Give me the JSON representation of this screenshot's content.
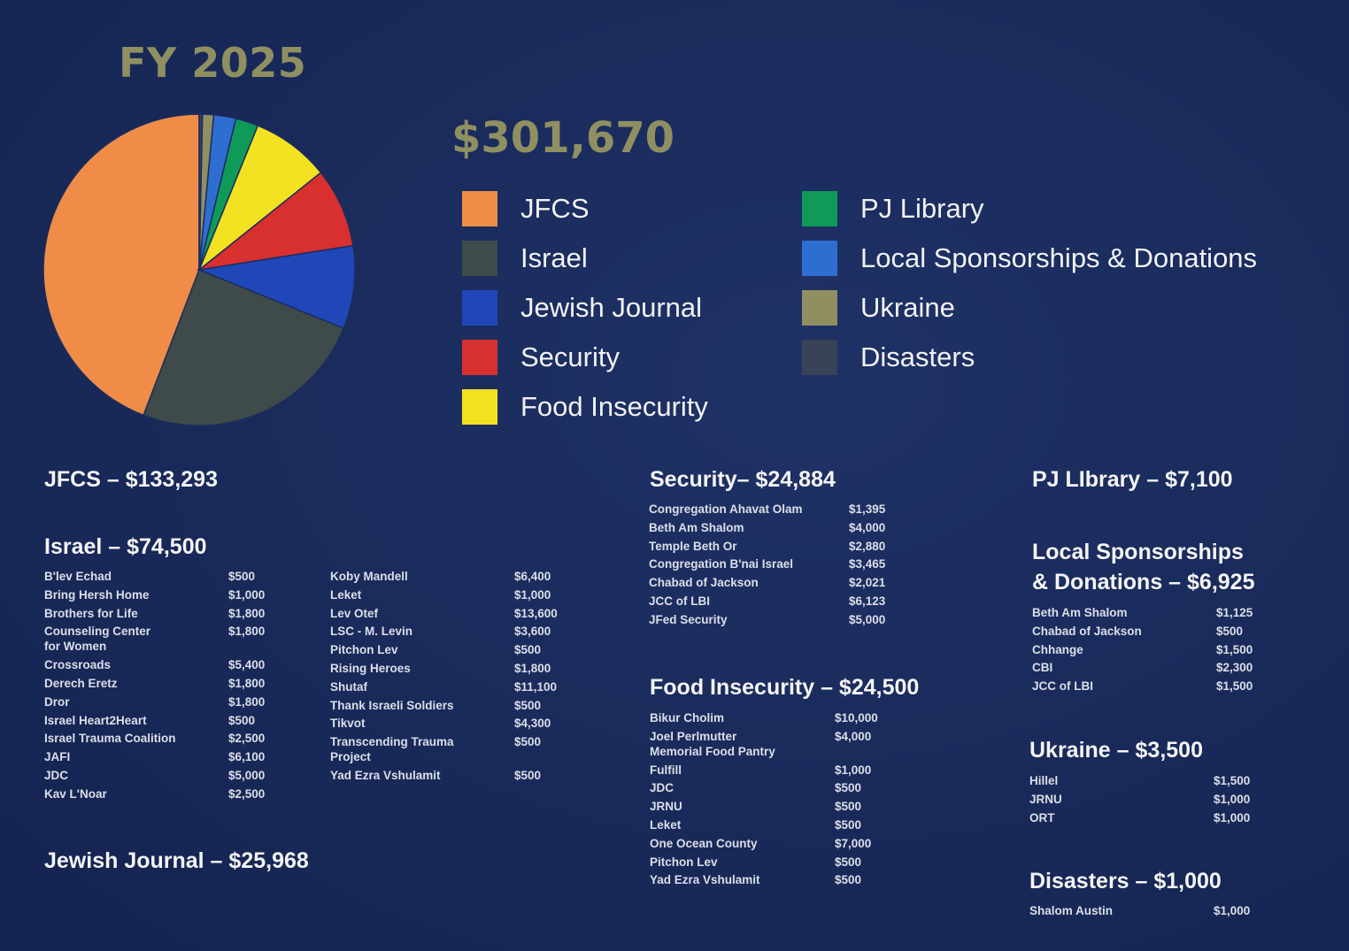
{
  "header": {
    "fy": "FY 2025",
    "total": "$301,670"
  },
  "chart_data": {
    "type": "pie",
    "title": "FY 2025",
    "total": "$301,670",
    "series": [
      {
        "name": "JFCS",
        "value": 133293,
        "color": "#ef8d48"
      },
      {
        "name": "Israel",
        "value": 74500,
        "color": "#3e4b4a"
      },
      {
        "name": "Jewish Journal",
        "value": 25968,
        "color": "#1f47b8"
      },
      {
        "name": "Security",
        "value": 24884,
        "color": "#d7302f"
      },
      {
        "name": "Food Insecurity",
        "value": 24500,
        "color": "#f2e221"
      },
      {
        "name": "PJ Library",
        "value": 7100,
        "color": "#0f9a5a"
      },
      {
        "name": "Local Sponsorships & Donations",
        "value": 6925,
        "color": "#2f6ed1"
      },
      {
        "name": "Ukraine",
        "value": 3500,
        "color": "#8f8f62"
      },
      {
        "name": "Disasters",
        "value": 1000,
        "color": "#3a4258"
      }
    ],
    "legend_position": "right"
  },
  "sections": {
    "jfcs": {
      "title": "JFCS – $133,293"
    },
    "israel": {
      "title": "Israel – $74,500",
      "col1": [
        {
          "name": "B'lev Echad",
          "amount": "$500"
        },
        {
          "name": "Bring Hersh Home",
          "amount": "$1,000"
        },
        {
          "name": "Brothers for Life",
          "amount": "$1,800"
        },
        {
          "name": "Counseling Center\nfor Women",
          "amount": "$1,800"
        },
        {
          "name": "Crossroads",
          "amount": "$5,400"
        },
        {
          "name": "Derech Eretz",
          "amount": "$1,800"
        },
        {
          "name": "Dror",
          "amount": "$1,800"
        },
        {
          "name": "Israel Heart2Heart",
          "amount": "$500"
        },
        {
          "name": "Israel Trauma Coalition",
          "amount": "$2,500"
        },
        {
          "name": "JAFI",
          "amount": "$6,100"
        },
        {
          "name": "JDC",
          "amount": "$5,000"
        },
        {
          "name": "Kav L'Noar",
          "amount": "$2,500"
        }
      ],
      "col2": [
        {
          "name": "Koby Mandell",
          "amount": "$6,400"
        },
        {
          "name": "Leket",
          "amount": "$1,000"
        },
        {
          "name": "Lev Otef",
          "amount": "$13,600"
        },
        {
          "name": "LSC - M. Levin",
          "amount": "$3,600"
        },
        {
          "name": "Pitchon Lev",
          "amount": "$500"
        },
        {
          "name": "Rising Heroes",
          "amount": "$1,800"
        },
        {
          "name": "Shutaf",
          "amount": "$11,100"
        },
        {
          "name": "Thank Israeli Soldiers",
          "amount": "$500"
        },
        {
          "name": "Tikvot",
          "amount": "$4,300"
        },
        {
          "name": "Transcending Trauma\nProject",
          "amount": "$500"
        },
        {
          "name": "Yad Ezra Vshulamit",
          "amount": "$500"
        }
      ]
    },
    "jewish_journal": {
      "title": "Jewish Journal – $25,968"
    },
    "security": {
      "title": "Security– $24,884",
      "rows": [
        {
          "name": "Congregation Ahavat Olam",
          "amount": "$1,395"
        },
        {
          "name": "Beth Am Shalom",
          "amount": "$4,000"
        },
        {
          "name": "Temple Beth Or",
          "amount": "$2,880"
        },
        {
          "name": "Congregation B'nai Israel",
          "amount": "$3,465"
        },
        {
          "name": "Chabad of Jackson",
          "amount": "$2,021"
        },
        {
          "name": "JCC of LBI",
          "amount": "$6,123"
        },
        {
          "name": "JFed Security",
          "amount": "$5,000"
        }
      ]
    },
    "food": {
      "title": "Food Insecurity – $24,500",
      "rows": [
        {
          "name": "Bikur Cholim",
          "amount": "$10,000"
        },
        {
          "name": "Joel Perlmutter\nMemorial Food Pantry",
          "amount": "$4,000"
        },
        {
          "name": "Fulfill",
          "amount": "$1,000"
        },
        {
          "name": "JDC",
          "amount": "$500"
        },
        {
          "name": "JRNU",
          "amount": "$500"
        },
        {
          "name": "Leket",
          "amount": "$500"
        },
        {
          "name": "One Ocean County",
          "amount": "$7,000"
        },
        {
          "name": "Pitchon Lev",
          "amount": "$500"
        },
        {
          "name": "Yad Ezra Vshulamit",
          "amount": "$500"
        }
      ]
    },
    "pj": {
      "title": "PJ LIbrary – $7,100"
    },
    "local": {
      "title1": "Local Sponsorships",
      "title2": "& Donations – $6,925",
      "rows": [
        {
          "name": "Beth Am Shalom",
          "amount": "$1,125"
        },
        {
          "name": "Chabad of Jackson",
          "amount": "$500"
        },
        {
          "name": "Chhange",
          "amount": "$1,500"
        },
        {
          "name": "CBI",
          "amount": "$2,300"
        },
        {
          "name": "JCC of LBI",
          "amount": "$1,500"
        }
      ]
    },
    "ukraine": {
      "title": "Ukraine – $3,500",
      "rows": [
        {
          "name": "Hillel",
          "amount": "$1,500"
        },
        {
          "name": "JRNU",
          "amount": "$1,000"
        },
        {
          "name": "ORT",
          "amount": "$1,000"
        }
      ]
    },
    "disasters": {
      "title": "Disasters – $1,000",
      "rows": [
        {
          "name": "Shalom Austin",
          "amount": "$1,000"
        }
      ]
    }
  }
}
